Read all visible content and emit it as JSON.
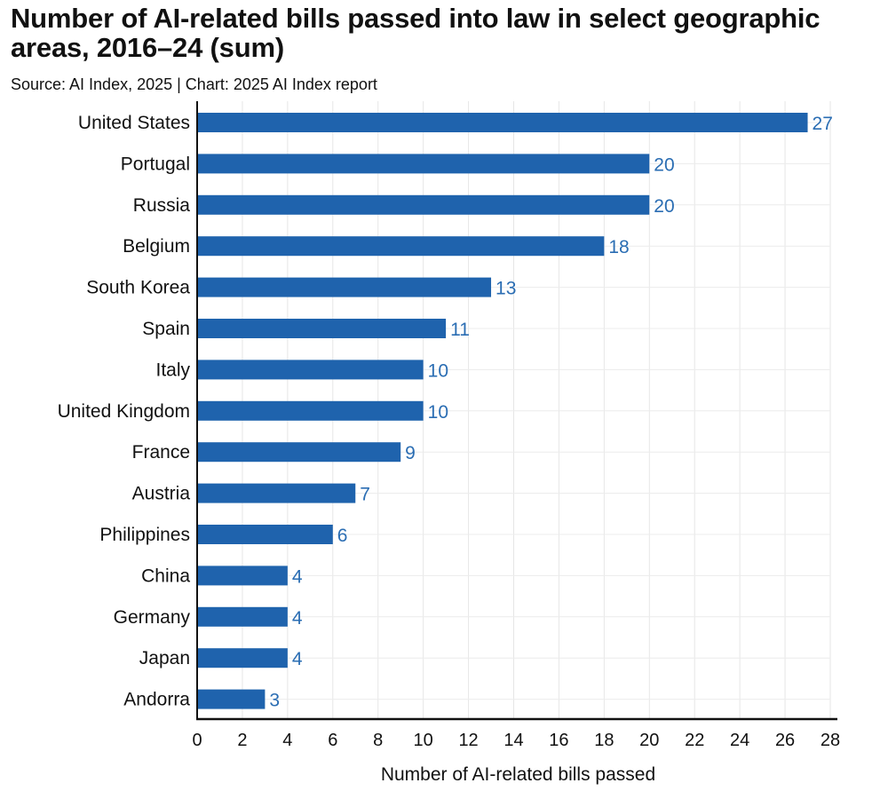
{
  "chart_data": {
    "type": "bar",
    "orientation": "horizontal",
    "title": "Number of AI-related bills passed into law in select geographic areas, 2016–24 (sum)",
    "subtitle": "Source: AI Index, 2025 | Chart: 2025 AI Index report",
    "categories": [
      "United States",
      "Portugal",
      "Russia",
      "Belgium",
      "South Korea",
      "Spain",
      "Italy",
      "United Kingdom",
      "France",
      "Austria",
      "Philippines",
      "China",
      "Germany",
      "Japan",
      "Andorra"
    ],
    "values": [
      27,
      20,
      20,
      18,
      13,
      11,
      10,
      10,
      9,
      7,
      6,
      4,
      4,
      4,
      3
    ],
    "xlabel": "Number of AI-related bills passed",
    "ylabel": "",
    "xlim": [
      0,
      28
    ],
    "xticks": [
      0,
      2,
      4,
      6,
      8,
      10,
      12,
      14,
      16,
      18,
      20,
      22,
      24,
      26,
      28
    ],
    "grid": true,
    "legend": "none",
    "bar_color": "#1f63ad",
    "label_color": "#2a6db3"
  }
}
